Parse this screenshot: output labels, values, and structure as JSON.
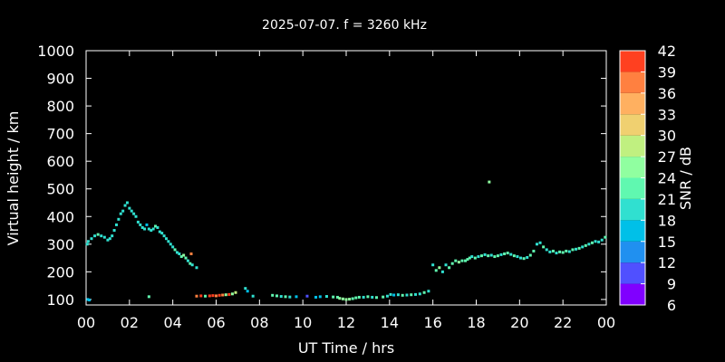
{
  "chart_data": {
    "type": "scatter",
    "title": "2025-07-07. f = 3260 kHz",
    "xlabel": "UT Time / hrs",
    "ylabel": "Virtual height / km",
    "xlim": [
      0,
      24
    ],
    "ylim": [
      80,
      1000
    ],
    "x_ticks": [
      "00",
      "02",
      "04",
      "06",
      "08",
      "10",
      "12",
      "14",
      "16",
      "18",
      "20",
      "22",
      "00"
    ],
    "y_ticks": [
      "100",
      "200",
      "300",
      "400",
      "500",
      "600",
      "700",
      "800",
      "900",
      "1000"
    ],
    "y_tick_values": [
      100,
      200,
      300,
      400,
      500,
      600,
      700,
      800,
      900,
      1000
    ],
    "colorbar": {
      "label": "SNR / dB",
      "range": [
        6,
        42
      ],
      "ticks": [
        "6",
        "9",
        "12",
        "15",
        "18",
        "21",
        "24",
        "27",
        "30",
        "33",
        "36",
        "39",
        "42"
      ],
      "tick_values": [
        6,
        9,
        12,
        15,
        18,
        21,
        24,
        27,
        30,
        33,
        36,
        39,
        42
      ],
      "colors": [
        "#8000ff",
        "#5050ff",
        "#2090f0",
        "#00c0e8",
        "#30e0d0",
        "#60f8b0",
        "#90ffa0",
        "#c0f080",
        "#f0d070",
        "#ffb060",
        "#ff8040",
        "#ff4020"
      ]
    },
    "points": [
      [
        0.05,
        300,
        18
      ],
      [
        0.1,
        310,
        20
      ],
      [
        0.25,
        320,
        19
      ],
      [
        0.4,
        330,
        20
      ],
      [
        0.55,
        335,
        21
      ],
      [
        0.7,
        330,
        19
      ],
      [
        0.85,
        325,
        18
      ],
      [
        1.0,
        315,
        19
      ],
      [
        1.1,
        320,
        18
      ],
      [
        1.2,
        330,
        20
      ],
      [
        1.3,
        350,
        19
      ],
      [
        1.4,
        370,
        18
      ],
      [
        1.5,
        390,
        19
      ],
      [
        1.6,
        410,
        18
      ],
      [
        1.7,
        420,
        19
      ],
      [
        1.8,
        440,
        20
      ],
      [
        1.9,
        450,
        19
      ],
      [
        2.0,
        430,
        18
      ],
      [
        2.1,
        420,
        19
      ],
      [
        2.2,
        410,
        18
      ],
      [
        2.3,
        400,
        19
      ],
      [
        2.4,
        380,
        18
      ],
      [
        2.5,
        370,
        20
      ],
      [
        2.6,
        360,
        19
      ],
      [
        2.7,
        355,
        18
      ],
      [
        2.8,
        370,
        17
      ],
      [
        2.9,
        355,
        18
      ],
      [
        3.0,
        350,
        19
      ],
      [
        3.1,
        355,
        20
      ],
      [
        3.2,
        365,
        21
      ],
      [
        3.3,
        360,
        20
      ],
      [
        3.4,
        345,
        19
      ],
      [
        3.5,
        340,
        20
      ],
      [
        3.6,
        330,
        18
      ],
      [
        3.7,
        320,
        19
      ],
      [
        3.8,
        310,
        20
      ],
      [
        3.9,
        300,
        19
      ],
      [
        4.0,
        290,
        20
      ],
      [
        4.1,
        280,
        21
      ],
      [
        4.2,
        270,
        20
      ],
      [
        4.3,
        265,
        19
      ],
      [
        4.4,
        255,
        22
      ],
      [
        4.5,
        260,
        25
      ],
      [
        4.6,
        250,
        22
      ],
      [
        4.7,
        240,
        20
      ],
      [
        4.8,
        230,
        21
      ],
      [
        4.9,
        225,
        19
      ],
      [
        5.1,
        215,
        20
      ],
      [
        4.85,
        265,
        37
      ],
      [
        0.08,
        100,
        17
      ],
      [
        0.15,
        98,
        15
      ],
      [
        2.9,
        110,
        23
      ],
      [
        5.1,
        112,
        38
      ],
      [
        5.3,
        113,
        40
      ],
      [
        5.5,
        112,
        21
      ],
      [
        5.7,
        113,
        39
      ],
      [
        5.85,
        114,
        40
      ],
      [
        6.0,
        113,
        38
      ],
      [
        6.15,
        115,
        40
      ],
      [
        6.3,
        116,
        38
      ],
      [
        6.45,
        117,
        24
      ],
      [
        6.6,
        118,
        39
      ],
      [
        6.75,
        120,
        26
      ],
      [
        6.9,
        125,
        28
      ],
      [
        7.35,
        140,
        18
      ],
      [
        7.45,
        130,
        17
      ],
      [
        7.7,
        112,
        19
      ],
      [
        8.6,
        115,
        23
      ],
      [
        8.8,
        113,
        21
      ],
      [
        9.0,
        111,
        19
      ],
      [
        9.2,
        110,
        22
      ],
      [
        9.4,
        109,
        20
      ],
      [
        9.7,
        110,
        15
      ],
      [
        10.2,
        112,
        11
      ],
      [
        10.6,
        108,
        16
      ],
      [
        10.8,
        110,
        17
      ],
      [
        11.1,
        111,
        20
      ],
      [
        11.4,
        109,
        21
      ],
      [
        11.6,
        108,
        23
      ],
      [
        11.7,
        104,
        24
      ],
      [
        11.85,
        102,
        25
      ],
      [
        12.0,
        100,
        26
      ],
      [
        12.15,
        101,
        24
      ],
      [
        12.3,
        103,
        23
      ],
      [
        12.45,
        106,
        22
      ],
      [
        12.6,
        108,
        21
      ],
      [
        12.8,
        108,
        20
      ],
      [
        13.0,
        110,
        21
      ],
      [
        13.2,
        108,
        20
      ],
      [
        13.4,
        107,
        22
      ],
      [
        13.7,
        109,
        21
      ],
      [
        13.9,
        112,
        20
      ],
      [
        14.05,
        118,
        18
      ],
      [
        14.2,
        116,
        17
      ],
      [
        14.4,
        117,
        20
      ],
      [
        14.6,
        115,
        21
      ],
      [
        14.8,
        116,
        20
      ],
      [
        15.0,
        117,
        21
      ],
      [
        15.2,
        118,
        20
      ],
      [
        15.4,
        120,
        19
      ],
      [
        15.6,
        125,
        21
      ],
      [
        15.8,
        130,
        20
      ],
      [
        16.0,
        225,
        19
      ],
      [
        16.15,
        205,
        22
      ],
      [
        16.3,
        215,
        25
      ],
      [
        16.45,
        200,
        18
      ],
      [
        16.6,
        225,
        20
      ],
      [
        16.75,
        215,
        21
      ],
      [
        16.9,
        230,
        22
      ],
      [
        17.05,
        240,
        23
      ],
      [
        17.2,
        235,
        24
      ],
      [
        17.35,
        240,
        22
      ],
      [
        17.5,
        240,
        23
      ],
      [
        17.6,
        245,
        22
      ],
      [
        17.7,
        250,
        21
      ],
      [
        17.8,
        255,
        20
      ],
      [
        17.95,
        250,
        21
      ],
      [
        18.1,
        255,
        20
      ],
      [
        18.25,
        258,
        21
      ],
      [
        18.4,
        262,
        20
      ],
      [
        18.55,
        258,
        21
      ],
      [
        18.7,
        260,
        20
      ],
      [
        18.85,
        255,
        21
      ],
      [
        19.0,
        258,
        22
      ],
      [
        19.15,
        262,
        20
      ],
      [
        19.3,
        265,
        21
      ],
      [
        19.45,
        268,
        22
      ],
      [
        19.6,
        263,
        20
      ],
      [
        19.75,
        258,
        21
      ],
      [
        19.9,
        255,
        19
      ],
      [
        20.05,
        250,
        20
      ],
      [
        20.2,
        248,
        21
      ],
      [
        20.35,
        252,
        20
      ],
      [
        20.5,
        260,
        21
      ],
      [
        20.65,
        275,
        22
      ],
      [
        20.8,
        300,
        20
      ],
      [
        20.95,
        305,
        19
      ],
      [
        21.1,
        290,
        21
      ],
      [
        21.25,
        280,
        20
      ],
      [
        21.4,
        272,
        19
      ],
      [
        21.55,
        275,
        21
      ],
      [
        21.7,
        268,
        20
      ],
      [
        21.85,
        272,
        21
      ],
      [
        22.0,
        270,
        22
      ],
      [
        22.15,
        275,
        21
      ],
      [
        22.3,
        273,
        20
      ],
      [
        22.45,
        280,
        21
      ],
      [
        22.6,
        282,
        20
      ],
      [
        22.75,
        285,
        21
      ],
      [
        22.9,
        290,
        20
      ],
      [
        23.05,
        295,
        21
      ],
      [
        23.2,
        300,
        20
      ],
      [
        23.35,
        305,
        21
      ],
      [
        23.5,
        310,
        20
      ],
      [
        23.65,
        308,
        19
      ],
      [
        23.8,
        315,
        20
      ],
      [
        23.95,
        325,
        21
      ],
      [
        18.6,
        525,
        24
      ]
    ]
  }
}
